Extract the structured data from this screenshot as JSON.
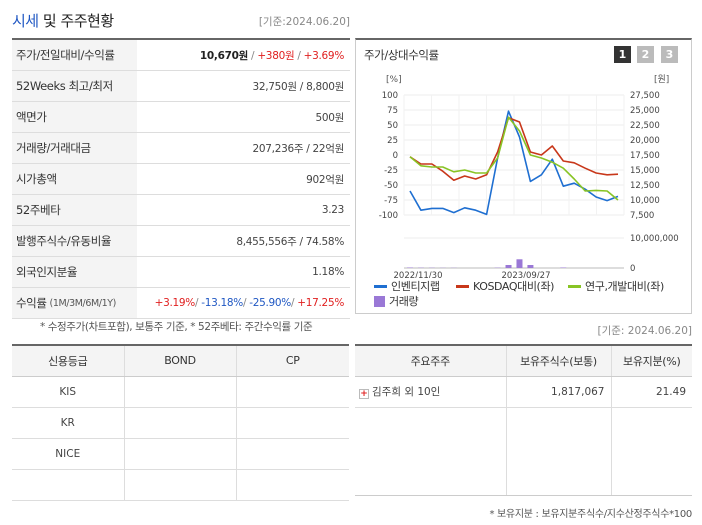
{
  "header": {
    "title_accent": "시세",
    "title_rest": " 및 주주현황",
    "base_date": "[기준:2024.06.20]"
  },
  "summary": {
    "rows": [
      {
        "label": "주가/전일대비/수익률",
        "price": "10,670원",
        "change": "+380원",
        "rate": "+3.69%"
      },
      {
        "label": "52Weeks 최고/최저",
        "value": "32,750원 / 8,800원"
      },
      {
        "label": "액면가",
        "value": "500원"
      },
      {
        "label": "거래량/거래대금",
        "value": "207,236주 / 22억원"
      },
      {
        "label": "시가총액",
        "value": "902억원"
      },
      {
        "label": "52주베타",
        "value": "3.23"
      },
      {
        "label": "발행주식수/유동비율",
        "value": "8,455,556주 / 74.58%"
      },
      {
        "label": "외국인지분율",
        "value": "1.18%"
      },
      {
        "label": "수익률",
        "sub": "(1M/3M/6M/1Y)",
        "r1": "+3.19%",
        "r2": "-13.18%",
        "r3": "-25.90%",
        "r4": "+17.25%"
      }
    ],
    "footnote": "* 수정주가(차트포함), 보통주 기준, * 52주베타: 주간수익률 기준"
  },
  "chart_panel": {
    "title": "주가/상대수익률",
    "tabs": [
      "1",
      "2",
      "3"
    ],
    "active_tab": 0,
    "colors": {
      "tab_active": "#333333",
      "tab_inactive": "#bbbbbb"
    }
  },
  "chart_data": {
    "type": "line",
    "left_unit": "[%]",
    "right_unit": "[원]",
    "left_ticks": [
      "100",
      "75",
      "50",
      "25",
      "0",
      "-25",
      "-50",
      "-75",
      "-100"
    ],
    "left_ylim": [
      -100,
      100
    ],
    "right_ticks": [
      "27,500",
      "25,000",
      "22,500",
      "20,000",
      "17,500",
      "15,000",
      "12,500",
      "10,000",
      "7,500"
    ],
    "right_ylim": [
      7500,
      27500
    ],
    "volume_ticks": [
      "10,000,000",
      "0"
    ],
    "volume_ylim": [
      0,
      10000000
    ],
    "x_labels": [
      "2022/11/30",
      "2023/09/27"
    ],
    "series": [
      {
        "name": "인벤티지랩",
        "color": "#1f6fd1",
        "axis": "right",
        "values": [
          11500,
          8300,
          8600,
          8600,
          7900,
          8700,
          8300,
          7600,
          17000,
          24800,
          20500,
          13100,
          14200,
          16800,
          12300,
          12800,
          11800,
          10500,
          9900,
          10600
        ]
      },
      {
        "name": "KOSDAQ대비(좌)",
        "color": "#c8371a",
        "axis": "left",
        "values": [
          -3,
          -15,
          -15,
          -27,
          -42,
          -35,
          -40,
          -33,
          5,
          62,
          55,
          5,
          0,
          15,
          -10,
          -13,
          -22,
          -30,
          -33,
          -32
        ]
      },
      {
        "name": "연구,개발대비(좌)",
        "color": "#88c425",
        "axis": "left",
        "values": [
          -3,
          -18,
          -20,
          -20,
          -28,
          -25,
          -30,
          -30,
          -5,
          63,
          40,
          0,
          -5,
          -12,
          -22,
          -40,
          -60,
          -59,
          -60,
          -75
        ]
      },
      {
        "name": "거래량",
        "color": "#9a78d6",
        "axis": "volume",
        "type": "bar",
        "values": [
          150000,
          100000,
          80000,
          60000,
          60000,
          0,
          0,
          0,
          100000,
          1000000,
          2900000,
          1000000,
          0,
          0,
          150000,
          0,
          0,
          0,
          0,
          0
        ]
      }
    ],
    "grid": true
  },
  "credit": {
    "headers": [
      "신용등급",
      "BOND",
      "CP"
    ],
    "rows": [
      {
        "agency": "KIS",
        "bond": "",
        "cp": ""
      },
      {
        "agency": "KR",
        "bond": "",
        "cp": ""
      },
      {
        "agency": "NICE",
        "bond": "",
        "cp": ""
      },
      {
        "agency": "",
        "bond": "",
        "cp": ""
      }
    ]
  },
  "holders": {
    "base_date": "[기준: 2024.06.20]",
    "headers": [
      "주요주주",
      "보유주식수(보통)",
      "보유지분(%)"
    ],
    "rows": [
      {
        "name": "김주희 외 10인",
        "shares": "1,817,067",
        "ratio": "21.49"
      }
    ],
    "footnote": "* 보유지분 : 보유지분주식수/지수산정주식수*100"
  }
}
